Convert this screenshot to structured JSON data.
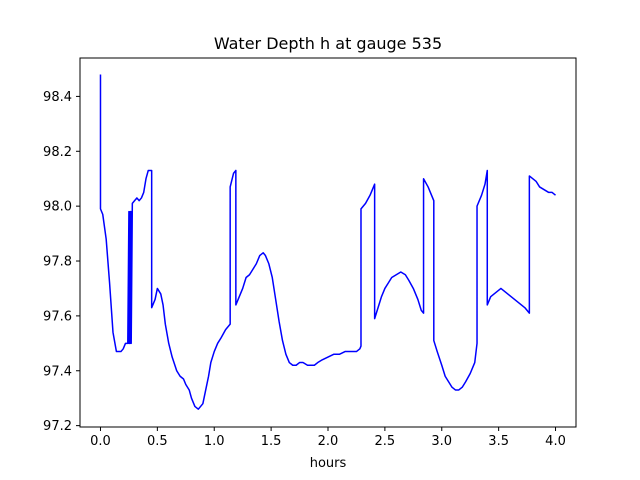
{
  "chart_data": {
    "type": "line",
    "title": "Water Depth h at gauge 535",
    "xlabel": "hours",
    "ylabel": "",
    "xlim": [
      -0.18,
      4.18
    ],
    "ylim": [
      97.195,
      98.54
    ],
    "xticks": [
      0.0,
      0.5,
      1.0,
      1.5,
      2.0,
      2.5,
      3.0,
      3.5,
      4.0
    ],
    "xtick_labels": [
      "0.0",
      "0.5",
      "1.0",
      "1.5",
      "2.0",
      "2.5",
      "3.0",
      "3.5",
      "4.0"
    ],
    "yticks": [
      97.2,
      97.4,
      97.6,
      97.8,
      98.0,
      98.2,
      98.4
    ],
    "ytick_labels": [
      "97.2",
      "97.4",
      "97.6",
      "97.8",
      "98.0",
      "98.2",
      "98.4"
    ],
    "grid": false,
    "series": [
      {
        "color": "#0000ff",
        "x": [
          0.0,
          0.0,
          0.02,
          0.05,
          0.08,
          0.11,
          0.14,
          0.16,
          0.18,
          0.2,
          0.22,
          0.24,
          0.25,
          0.25,
          0.26,
          0.26,
          0.27,
          0.27,
          0.28,
          0.3,
          0.32,
          0.34,
          0.36,
          0.38,
          0.4,
          0.42,
          0.45,
          0.45,
          0.48,
          0.5,
          0.53,
          0.55,
          0.57,
          0.6,
          0.63,
          0.67,
          0.7,
          0.73,
          0.75,
          0.78,
          0.8,
          0.83,
          0.86,
          0.88,
          0.9,
          0.92,
          0.95,
          0.97,
          1.0,
          1.03,
          1.06,
          1.1,
          1.14,
          1.14,
          1.17,
          1.19,
          1.19,
          1.22,
          1.25,
          1.28,
          1.31,
          1.34,
          1.37,
          1.4,
          1.43,
          1.45,
          1.48,
          1.51,
          1.54,
          1.57,
          1.6,
          1.63,
          1.66,
          1.69,
          1.72,
          1.75,
          1.78,
          1.82,
          1.85,
          1.88,
          1.91,
          1.95,
          2.0,
          2.05,
          2.1,
          2.15,
          2.2,
          2.25,
          2.28,
          2.29,
          2.29,
          2.33,
          2.37,
          2.41,
          2.41,
          2.44,
          2.47,
          2.5,
          2.53,
          2.56,
          2.6,
          2.64,
          2.68,
          2.71,
          2.75,
          2.79,
          2.82,
          2.84,
          2.84,
          2.88,
          2.91,
          2.93,
          2.93,
          2.96,
          3.0,
          3.03,
          3.06,
          3.09,
          3.12,
          3.15,
          3.18,
          3.21,
          3.25,
          3.29,
          3.31,
          3.31,
          3.35,
          3.38,
          3.4,
          3.4,
          3.43,
          3.46,
          3.49,
          3.52,
          3.55,
          3.58,
          3.61,
          3.64,
          3.67,
          3.7,
          3.73,
          3.77,
          3.77,
          3.8,
          3.83,
          3.86,
          3.9,
          3.94,
          3.97,
          4.0
        ],
        "y": [
          98.48,
          97.99,
          97.97,
          97.88,
          97.72,
          97.54,
          97.47,
          97.47,
          97.47,
          97.48,
          97.5,
          97.5,
          97.98,
          97.5,
          97.5,
          97.98,
          97.98,
          97.5,
          98.01,
          98.02,
          98.03,
          98.02,
          98.03,
          98.05,
          98.1,
          98.13,
          98.13,
          97.63,
          97.66,
          97.7,
          97.68,
          97.64,
          97.57,
          97.5,
          97.45,
          97.4,
          97.38,
          97.37,
          97.35,
          97.33,
          97.3,
          97.27,
          97.26,
          97.27,
          97.28,
          97.32,
          97.38,
          97.43,
          97.47,
          97.5,
          97.52,
          97.55,
          97.57,
          98.07,
          98.12,
          98.13,
          97.64,
          97.67,
          97.7,
          97.74,
          97.75,
          97.77,
          97.79,
          97.82,
          97.83,
          97.82,
          97.79,
          97.74,
          97.66,
          97.58,
          97.51,
          97.46,
          97.43,
          97.42,
          97.42,
          97.43,
          97.43,
          97.42,
          97.42,
          97.42,
          97.43,
          97.44,
          97.45,
          97.46,
          97.46,
          97.47,
          97.47,
          97.47,
          97.48,
          97.49,
          97.99,
          98.01,
          98.04,
          98.08,
          97.59,
          97.63,
          97.67,
          97.7,
          97.72,
          97.74,
          97.75,
          97.76,
          97.75,
          97.73,
          97.7,
          97.66,
          97.62,
          97.61,
          98.1,
          98.07,
          98.04,
          98.02,
          97.51,
          97.47,
          97.42,
          97.38,
          97.36,
          97.34,
          97.33,
          97.33,
          97.34,
          97.36,
          97.39,
          97.43,
          97.5,
          98.0,
          98.04,
          98.08,
          98.13,
          97.64,
          97.67,
          97.68,
          97.69,
          97.7,
          97.69,
          97.68,
          97.67,
          97.66,
          97.65,
          97.64,
          97.63,
          97.61,
          98.11,
          98.1,
          98.09,
          98.07,
          98.06,
          98.05,
          98.05,
          98.04
        ]
      }
    ]
  }
}
